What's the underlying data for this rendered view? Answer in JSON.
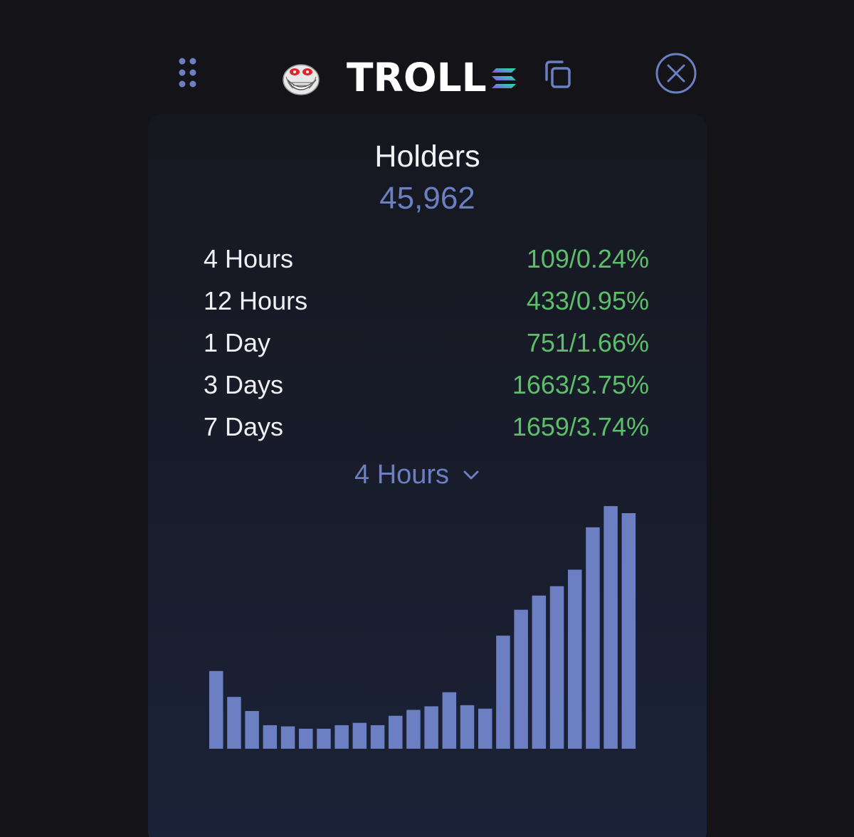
{
  "header": {
    "drag_icon": "grip-dots-icon",
    "token_logo_icon": "troll-face-icon",
    "token_name": "TROLL",
    "chain_icon": "solana-icon",
    "copy_icon": "copy-icon",
    "close_icon": "close-circle-icon"
  },
  "holders": {
    "title": "Holders",
    "count": "45,962"
  },
  "stats": [
    {
      "label": "4 Hours",
      "value": "109/0.24%"
    },
    {
      "label": "12 Hours",
      "value": "433/0.95%"
    },
    {
      "label": "1 Day",
      "value": "751/1.66%"
    },
    {
      "label": "3 Days",
      "value": "1663/3.75%"
    },
    {
      "label": "7 Days",
      "value": "1659/3.74%"
    }
  ],
  "period_selector": {
    "selected": "4 Hours",
    "icon": "chevron-down-icon"
  },
  "colors": {
    "accent": "#6b7fc2",
    "positive": "#5cbf6a",
    "bar": "#6b7fc2",
    "background": "#131318"
  },
  "chart_data": {
    "type": "bar",
    "values": [
      33,
      22,
      16,
      10,
      9.5,
      8.5,
      8.5,
      10,
      11,
      10,
      14,
      16.5,
      18,
      24,
      18.5,
      17,
      48,
      59,
      65,
      69,
      76,
      94,
      103,
      100
    ],
    "ylim": [
      0,
      100
    ],
    "grid": false,
    "title": "",
    "xlabel": "",
    "ylabel": ""
  }
}
